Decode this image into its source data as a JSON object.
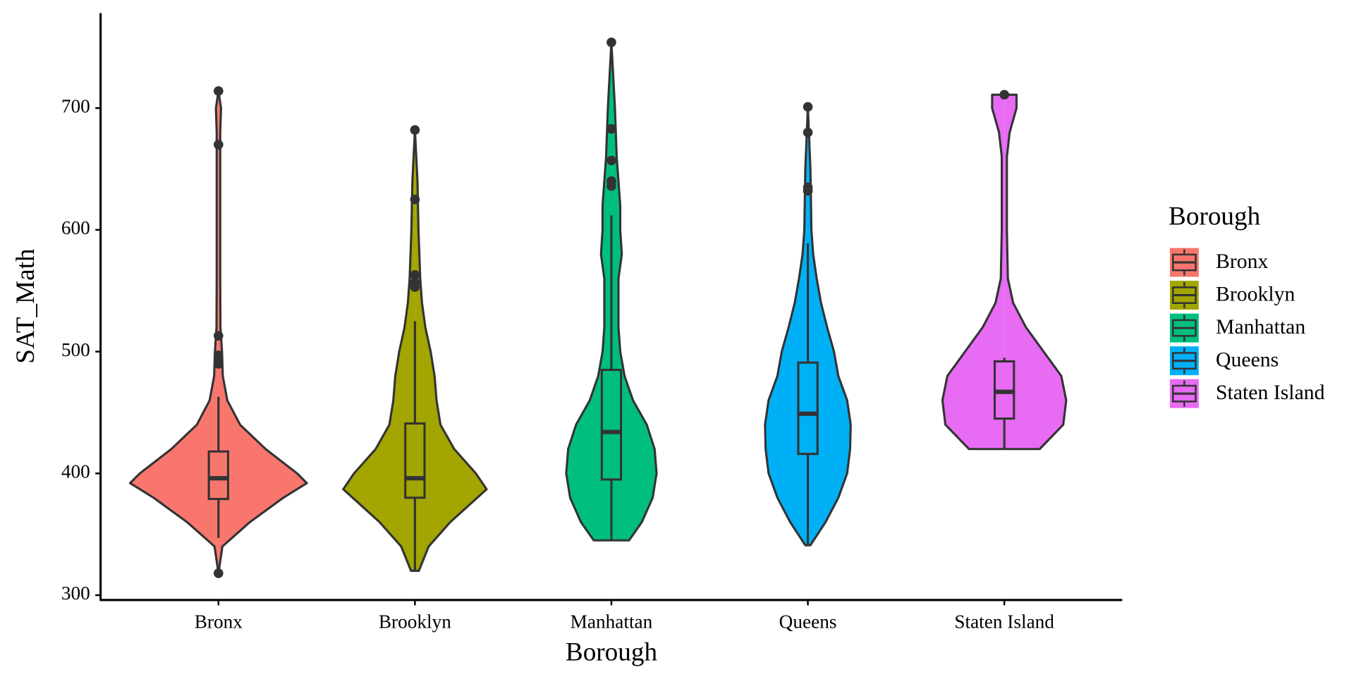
{
  "chart_data": {
    "type": "violin",
    "x_label": "Borough",
    "y_label": "SAT_Math",
    "categories": [
      "Bronx",
      "Brooklyn",
      "Manhattan",
      "Queens",
      "Staten Island"
    ],
    "ylim": [
      296,
      778
    ],
    "yticks": [
      300,
      400,
      500,
      600,
      700
    ],
    "legend_title": "Borough",
    "legend_position": "right",
    "series": [
      {
        "name": "Bronx",
        "color": "#F8766D",
        "violin": {
          "y": [
            318,
            340,
            360,
            380,
            392,
            400,
            420,
            440,
            460,
            480,
            500,
            520,
            560,
            600,
            650,
            680,
            700,
            714
          ],
          "width": [
            0,
            0.02,
            0.16,
            0.33,
            0.45,
            0.4,
            0.24,
            0.11,
            0.045,
            0.022,
            0.018,
            0.01,
            0.009,
            0.009,
            0.009,
            0.009,
            0.013,
            0
          ]
        },
        "box": {
          "low": 347,
          "q1": 379,
          "median": 396,
          "q3": 418,
          "high": 463
        },
        "outliers": [
          318,
          490,
          494,
          497,
          513,
          670,
          714
        ]
      },
      {
        "name": "Brooklyn",
        "color": "#A3A500",
        "violin": {
          "y": [
            320,
            340,
            360,
            387,
            400,
            420,
            440,
            460,
            480,
            500,
            520,
            540,
            560,
            600,
            640,
            682
          ],
          "width": [
            0.02,
            0.07,
            0.18,
            0.365,
            0.31,
            0.2,
            0.13,
            0.11,
            0.1,
            0.08,
            0.053,
            0.036,
            0.027,
            0.018,
            0.013,
            0
          ]
        },
        "box": {
          "low": 320,
          "q1": 380,
          "median": 396,
          "q3": 441,
          "high": 525
        },
        "outliers": [
          553,
          557,
          563,
          625,
          682
        ]
      },
      {
        "name": "Manhattan",
        "color": "#00BF7D",
        "violin": {
          "y": [
            345,
            360,
            380,
            400,
            420,
            440,
            460,
            480,
            500,
            520,
            560,
            580,
            600,
            620,
            640,
            660,
            700,
            754
          ],
          "width": [
            0.09,
            0.155,
            0.21,
            0.23,
            0.22,
            0.18,
            0.11,
            0.067,
            0.045,
            0.036,
            0.036,
            0.053,
            0.045,
            0.045,
            0.036,
            0.027,
            0.018,
            0
          ]
        },
        "box": {
          "low": 345,
          "q1": 395,
          "median": 434,
          "q3": 485,
          "high": 612
        },
        "outliers": [
          636,
          640,
          657,
          683,
          754
        ]
      },
      {
        "name": "Queens",
        "color": "#00B0F6",
        "violin": {
          "y": [
            341,
            360,
            380,
            400,
            420,
            440,
            460,
            480,
            500,
            520,
            540,
            560,
            580,
            600,
            650,
            701
          ],
          "width": [
            0.013,
            0.09,
            0.155,
            0.2,
            0.215,
            0.218,
            0.2,
            0.155,
            0.133,
            0.098,
            0.067,
            0.045,
            0.027,
            0.018,
            0.013,
            0
          ]
        },
        "box": {
          "low": 341,
          "q1": 416,
          "median": 449,
          "q3": 491,
          "high": 589
        },
        "outliers": [
          632,
          635,
          680,
          701
        ]
      },
      {
        "name": "Staten Island",
        "color": "#E76BF3",
        "violin": {
          "y": [
            420,
            440,
            460,
            480,
            500,
            520,
            540,
            560,
            600,
            660,
            680,
            700,
            711
          ],
          "width": [
            0.18,
            0.3,
            0.315,
            0.29,
            0.2,
            0.11,
            0.045,
            0.018,
            0.013,
            0.013,
            0.027,
            0.062,
            0.062
          ]
        },
        "box": {
          "low": 420,
          "q1": 445,
          "median": 467,
          "q3": 492,
          "high": 495
        },
        "outliers": [
          711
        ]
      }
    ]
  }
}
